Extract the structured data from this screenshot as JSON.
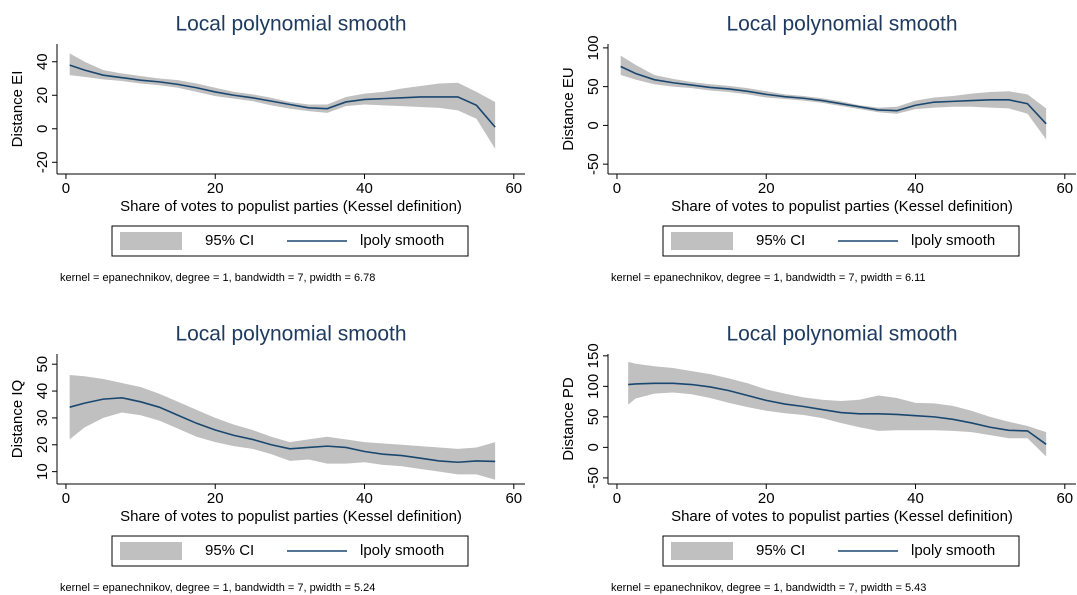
{
  "chart_data": [
    {
      "type": "line",
      "title": "Local polynomial smooth",
      "xlabel": "Share of votes to populist parties (Kessel definition)",
      "ylabel": "Distance EI",
      "note": "kernel = epanechnikov, degree = 1, bandwidth = 7, pwidth = 6.78",
      "x": [
        0.5,
        2.5,
        5,
        7.5,
        10,
        12.5,
        15,
        17.5,
        20,
        22.5,
        25,
        27.5,
        30,
        32.5,
        35,
        37.5,
        40,
        42.5,
        45,
        47.5,
        50,
        52.5,
        55,
        57.5
      ],
      "series": [
        {
          "name": "95% CI",
          "color": "#c0c0c0",
          "upper": [
            45,
            40,
            35,
            33,
            31.5,
            30,
            29,
            27,
            24.5,
            22,
            20.5,
            18.5,
            16,
            14.5,
            14.5,
            19,
            21,
            22,
            24,
            25.5,
            27,
            27.5,
            22,
            16
          ],
          "lower": [
            32,
            31,
            29.5,
            28.5,
            27,
            26,
            24.5,
            22,
            19.5,
            18,
            16.5,
            14,
            12,
            10.5,
            9.5,
            13.5,
            14.5,
            14,
            13.5,
            13,
            12.5,
            11,
            6,
            -12
          ]
        },
        {
          "name": "lpoly smooth",
          "color": "#1a476f",
          "values": [
            38,
            35,
            32,
            30.5,
            29,
            28,
            26.5,
            24.5,
            22,
            20,
            18.5,
            16.5,
            14.5,
            12.5,
            12,
            16,
            17.5,
            18,
            18.5,
            19,
            19,
            19,
            14,
            1
          ]
        }
      ],
      "xlim": [
        -1.2,
        61.5
      ],
      "xticks": [
        0,
        20,
        40,
        60
      ],
      "ylim": [
        -27,
        50.6
      ],
      "yticks": [
        -20,
        0,
        20,
        40
      ]
    },
    {
      "type": "line",
      "title": "Local polynomial smooth",
      "xlabel": "Share of votes to populist parties (Kessel definition)",
      "ylabel": "Distance EU",
      "note": "kernel = epanechnikov, degree = 1, bandwidth = 7, pwidth = 6.11",
      "x": [
        0.5,
        2.5,
        5,
        7.5,
        10,
        12.5,
        15,
        17.5,
        20,
        22.5,
        25,
        27.5,
        30,
        32.5,
        35,
        37.5,
        40,
        42.5,
        45,
        47.5,
        50,
        52.5,
        55,
        57.5
      ],
      "series": [
        {
          "name": "95% CI",
          "color": "#c0c0c0",
          "upper": [
            90,
            78,
            65,
            60,
            56,
            53,
            51,
            48,
            44,
            40,
            38,
            35,
            31,
            26,
            23,
            24,
            32,
            36,
            38,
            41,
            43,
            44,
            40,
            22
          ],
          "lower": [
            65,
            59,
            53,
            50,
            48,
            45,
            43,
            40,
            36,
            34,
            32,
            29,
            25,
            21,
            17,
            15,
            21,
            23,
            24,
            24,
            23,
            22,
            15,
            -18
          ]
        },
        {
          "name": "lpoly smooth",
          "color": "#1a476f",
          "values": [
            76,
            67,
            59,
            55,
            52,
            49,
            47,
            44,
            40,
            37,
            35,
            32,
            28,
            24,
            20,
            19,
            26,
            30,
            31,
            32,
            33,
            33,
            28,
            2
          ]
        }
      ],
      "xlim": [
        -1.2,
        61.5
      ],
      "xticks": [
        0,
        20,
        40,
        60
      ],
      "ylim": [
        -62.7,
        105
      ],
      "yticks": [
        -50,
        0,
        50,
        100
      ]
    },
    {
      "type": "line",
      "title": "Local polynomial smooth",
      "xlabel": "Share of votes to populist parties (Kessel definition)",
      "ylabel": "Distance IQ",
      "note": "kernel = epanechnikov, degree = 1, bandwidth = 7, pwidth = 5.24",
      "x": [
        0.5,
        2.5,
        5,
        7.5,
        10,
        12.5,
        15,
        17.5,
        20,
        22.5,
        25,
        27.5,
        30,
        32.5,
        35,
        37.5,
        40,
        42.5,
        45,
        47.5,
        50,
        52.5,
        55,
        57.5
      ],
      "series": [
        {
          "name": "95% CI",
          "color": "#c0c0c0",
          "upper": [
            46,
            45.5,
            44.5,
            43,
            41.5,
            39,
            36,
            33,
            30,
            27.5,
            25.5,
            23,
            21,
            22,
            23,
            22,
            21,
            20.5,
            20,
            19.5,
            19,
            18.5,
            19,
            21
          ],
          "lower": [
            22,
            26.5,
            30,
            32,
            31,
            29,
            26,
            23,
            21,
            19.5,
            18.5,
            16.5,
            14,
            14.5,
            13,
            13,
            13.5,
            12.5,
            12,
            11,
            10,
            9,
            9,
            7
          ]
        },
        {
          "name": "lpoly smooth",
          "color": "#1a476f",
          "values": [
            34,
            35.5,
            37,
            37.5,
            36,
            34,
            31,
            28,
            25.5,
            23.5,
            22,
            20,
            18.5,
            19,
            19.5,
            19,
            17.5,
            16.5,
            16,
            15,
            14,
            13.5,
            14,
            13.8
          ]
        }
      ],
      "xlim": [
        -1.2,
        61.5
      ],
      "xticks": [
        0,
        20,
        40,
        60
      ],
      "ylim": [
        5.4,
        53.8
      ],
      "yticks": [
        10,
        20,
        30,
        40,
        50
      ]
    },
    {
      "type": "line",
      "title": "Local polynomial smooth",
      "xlabel": "Share of votes to populist parties (Kessel definition)",
      "ylabel": "Distance PD",
      "note": "kernel = epanechnikov, degree = 1, bandwidth = 7, pwidth = 5.43",
      "x": [
        1.5,
        2.5,
        5,
        7.5,
        10,
        12.5,
        15,
        17.5,
        20,
        22.5,
        25,
        27.5,
        30,
        32.5,
        35,
        37.5,
        40,
        42.5,
        45,
        47.5,
        50,
        52.5,
        55,
        57.5
      ],
      "series": [
        {
          "name": "95% CI",
          "color": "#c0c0c0",
          "upper": [
            140,
            137,
            133,
            130,
            125,
            120,
            113,
            105,
            95,
            88,
            82,
            78,
            76,
            78,
            85,
            81,
            73,
            72,
            68,
            60,
            50,
            42,
            35,
            25
          ],
          "lower": [
            70,
            80,
            88,
            90,
            87,
            81,
            73,
            66,
            60,
            56,
            53,
            48,
            40,
            33,
            27,
            28,
            28,
            28,
            27,
            25,
            20,
            15,
            15,
            -15
          ]
        },
        {
          "name": "lpoly smooth",
          "color": "#1a476f",
          "values": [
            103,
            104,
            105,
            105,
            103,
            99,
            93,
            85,
            77,
            71,
            67,
            62,
            57,
            55,
            55,
            54,
            52,
            50,
            46,
            40,
            33,
            28,
            27,
            5
          ]
        }
      ],
      "xlim": [
        -1.2,
        61.5
      ],
      "xticks": [
        0,
        20,
        40,
        60
      ],
      "ylim": [
        -60,
        153
      ],
      "yticks": [
        -50,
        0,
        50,
        100,
        150
      ]
    }
  ]
}
